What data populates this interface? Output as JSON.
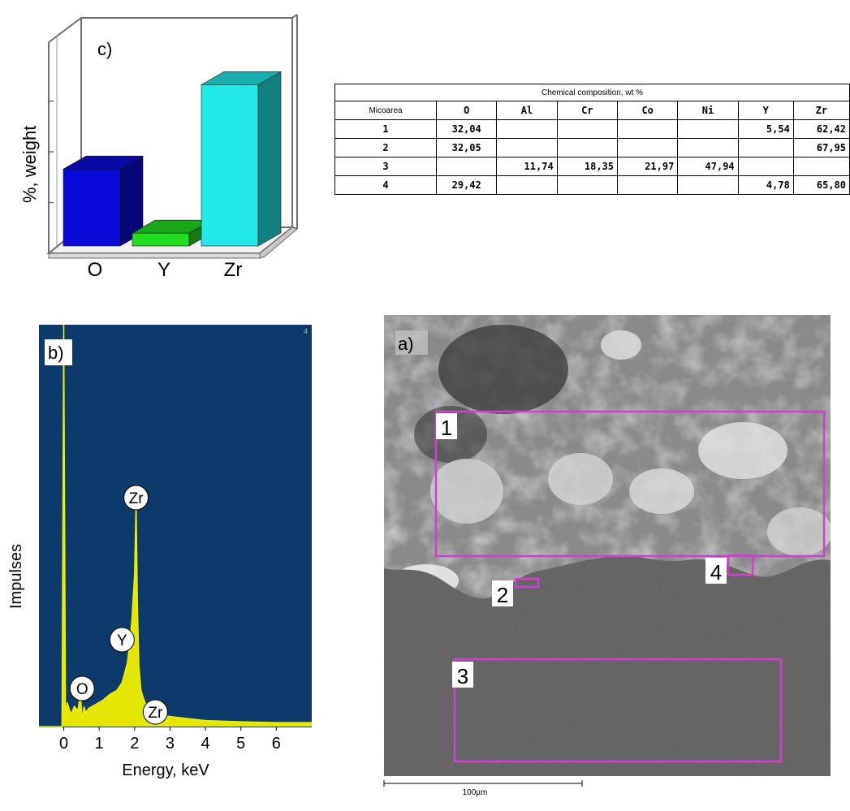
{
  "panel_c": {
    "label": "c)",
    "ylabel": "%, weight",
    "colors": {
      "O": "#0a0ad8",
      "Y": "#22dd22",
      "Zr": "#22e8e8"
    }
  },
  "table": {
    "title": "Chemical composition, wt %",
    "headers": [
      "Micoarea",
      "O",
      "Al",
      "Cr",
      "Co",
      "Ni",
      "Y",
      "Zr"
    ],
    "rows": [
      [
        "1",
        "32,04",
        "",
        "",
        "",
        "",
        "5,54",
        "62,42"
      ],
      [
        "2",
        "32,05",
        "",
        "",
        "",
        "",
        "",
        "67,95"
      ],
      [
        "3",
        "",
        "11,74",
        "18,35",
        "21,97",
        "47,94",
        "",
        ""
      ],
      [
        "4",
        "29,42",
        "",
        "",
        "",
        "",
        "4,78",
        "65,80"
      ]
    ]
  },
  "panel_b": {
    "label": "b)",
    "ylabel": "Impulses",
    "xlabel": "Energy, keV",
    "corner_mark": "4",
    "background": "#0b3a6b",
    "trace_color": "#f0f000"
  },
  "panel_a": {
    "label": "a)",
    "scale_bar": "100µm",
    "box_color": "#d040d0",
    "areas": [
      "1",
      "2",
      "3",
      "4"
    ]
  },
  "chart_data": [
    {
      "type": "bar",
      "categories": [
        "O",
        "Y",
        "Zr"
      ],
      "values": [
        31.2,
        5.2,
        65.4
      ],
      "ylabel": "%, weight",
      "ylim": [
        0,
        80
      ],
      "grid": false
    },
    {
      "type": "line",
      "xlabel": "Energy, keV",
      "ylabel": "Impulses",
      "xlim": [
        -0.7,
        7.0
      ],
      "xticks": [
        0,
        1,
        2,
        3,
        4,
        5,
        6
      ],
      "x": [
        -0.7,
        -0.05,
        0.0,
        0.05,
        0.1,
        0.2,
        0.3,
        0.4,
        0.47,
        0.52,
        0.57,
        0.62,
        0.7,
        0.9,
        1.1,
        1.3,
        1.5,
        1.65,
        1.8,
        1.92,
        2.0,
        2.04,
        2.08,
        2.12,
        2.18,
        2.25,
        2.32,
        2.4,
        2.5,
        2.7,
        3.0,
        3.5,
        4.0,
        5.0,
        6.0,
        7.0
      ],
      "y": [
        0,
        0,
        100,
        2,
        6,
        3,
        5,
        4,
        8,
        1.5,
        5,
        3.5,
        4.5,
        5.5,
        6.5,
        8,
        9,
        11,
        16,
        26,
        38,
        56,
        30,
        15,
        9,
        7,
        5.5,
        4.5,
        3.5,
        3,
        2.5,
        2,
        1.5,
        1.2,
        1,
        1
      ],
      "annotations": [
        {
          "label": "O",
          "x": 0.52
        },
        {
          "label": "Y",
          "x": 1.92
        },
        {
          "label": "Zr",
          "x": 2.04
        },
        {
          "label": "Zr",
          "x": 2.7
        }
      ]
    }
  ]
}
